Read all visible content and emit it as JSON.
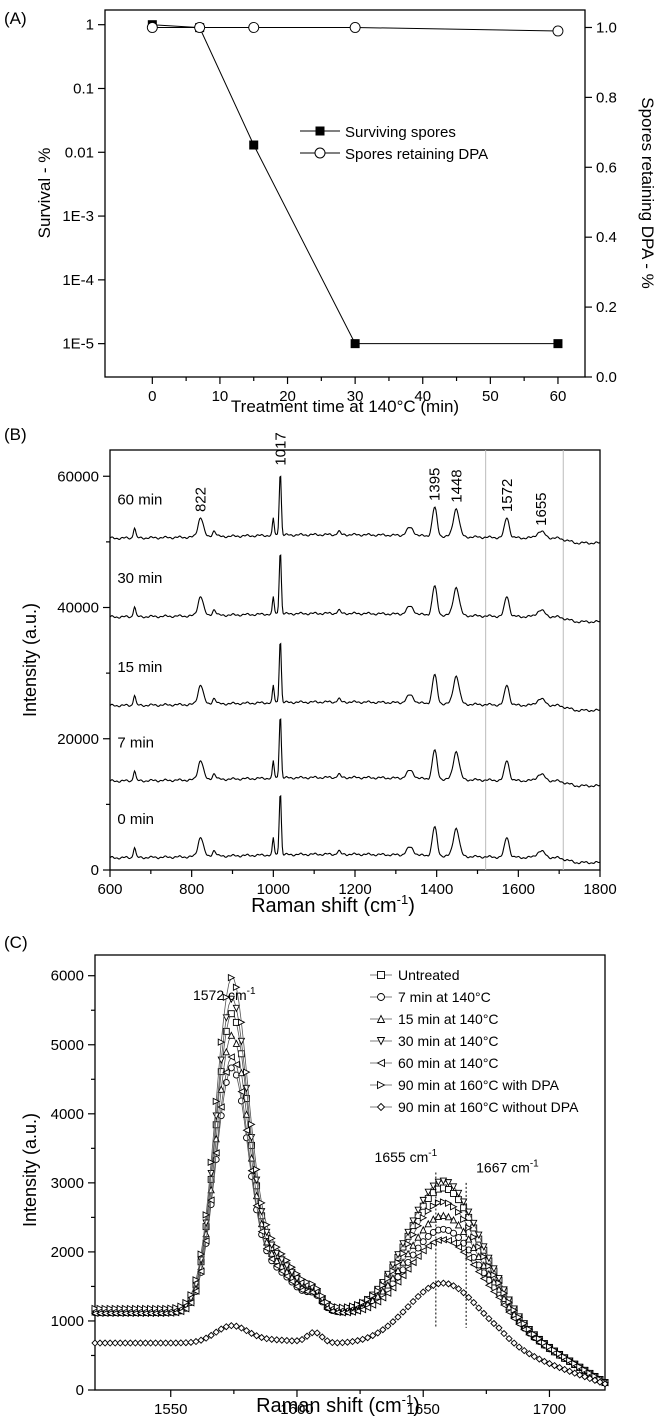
{
  "chart_data": [
    {
      "panel_label": "(A)",
      "type": "line",
      "xlabel": "Treatment time at 140°C (min)",
      "ylabel": "Survival - %",
      "ylabel_right": "Spores retaining DPA - %",
      "xlim": [
        -7,
        64
      ],
      "ylim": [
        3e-06,
        1.7
      ],
      "y_scale": "log",
      "ylim_right": [
        0,
        1.05
      ],
      "x_ticks": [
        0,
        10,
        20,
        30,
        40,
        50,
        60
      ],
      "x_tick_labels": [
        "0",
        "10",
        "20",
        "30",
        "40",
        "50",
        "60"
      ],
      "y_ticks": [
        1,
        0.1,
        0.01,
        0.001,
        0.0001,
        1e-05
      ],
      "y_tick_labels": [
        "1",
        "0.1",
        "0.01",
        "1E-3",
        "1E-4",
        "1E-5"
      ],
      "y_right_ticks": [
        0,
        0.2,
        0.4,
        0.6,
        0.8,
        1.0
      ],
      "y_right_tick_labels": [
        "0.0",
        "0.2",
        "0.4",
        "0.6",
        "0.8",
        "1.0"
      ],
      "legend_position": "center-right",
      "series": [
        {
          "name": "Surviving spores",
          "marker": "square-filled",
          "axis": "left",
          "x": [
            0,
            7,
            15,
            30,
            60
          ],
          "y": [
            1,
            0.9,
            0.013,
            1e-05,
            1e-05
          ]
        },
        {
          "name": "Spores retaining DPA",
          "marker": "circle-open",
          "axis": "right",
          "x": [
            0,
            7,
            15,
            30,
            60
          ],
          "y": [
            1.0,
            1.0,
            1.0,
            1.0,
            0.99
          ]
        }
      ]
    },
    {
      "panel_label": "(B)",
      "type": "line",
      "xlabel": "Raman shift (cm",
      "xlabel_sup": "-1",
      "xlabel_tail": ")",
      "ylabel": "Intensity (a.u.)",
      "xlim": [
        600,
        1800
      ],
      "ylim": [
        0,
        64000
      ],
      "x_ticks": [
        600,
        800,
        1000,
        1200,
        1400,
        1600,
        1800
      ],
      "x_tick_labels": [
        "600",
        "800",
        "1000",
        "1200",
        "1400",
        "1600",
        "1800"
      ],
      "y_ticks": [
        0,
        20000,
        40000,
        60000
      ],
      "y_tick_labels": [
        "0",
        "20000",
        "40000",
        "60000"
      ],
      "vlines": [
        1520,
        1710
      ],
      "peaks": [
        {
          "label": "822",
          "x": 822
        },
        {
          "label": "1017",
          "x": 1017
        },
        {
          "label": "1395",
          "x": 1395
        },
        {
          "label": "1448",
          "x": 1448
        },
        {
          "label": "1572",
          "x": 1572
        },
        {
          "label": "1655",
          "x": 1655
        }
      ],
      "series": [
        {
          "name": "0 min",
          "offset": 1800
        },
        {
          "name": "7 min",
          "offset": 13500
        },
        {
          "name": "15 min",
          "offset": 25000
        },
        {
          "name": "30 min",
          "offset": 38500
        },
        {
          "name": "60 min",
          "offset": 50500
        }
      ]
    },
    {
      "panel_label": "(C)",
      "type": "line",
      "xlabel": "Raman shift (cm",
      "xlabel_sup": "-1",
      "xlabel_tail": ")",
      "ylabel": "Intensity (a.u.)",
      "xlim": [
        1520,
        1722
      ],
      "ylim": [
        0,
        6300
      ],
      "x_ticks": [
        1550,
        1600,
        1650,
        1700
      ],
      "x_tick_labels": [
        "1550",
        "1600",
        "1650",
        "1700"
      ],
      "y_ticks": [
        0,
        1000,
        2000,
        3000,
        4000,
        5000,
        6000
      ],
      "y_tick_labels": [
        "0",
        "1000",
        "2000",
        "3000",
        "4000",
        "5000",
        "6000"
      ],
      "legend_position": "top-right",
      "annotations": [
        {
          "text": "1572 cm",
          "sup": "-1",
          "x": 1572
        },
        {
          "text": "1655 cm",
          "sup": "-1",
          "x": 1655
        },
        {
          "text": "1667 cm",
          "sup": "-1",
          "x": 1667
        }
      ],
      "series": [
        {
          "name": "Untreated",
          "marker": "square-open",
          "peak1": 5250,
          "base1": 1150,
          "peak2": 2950
        },
        {
          "name": "7 min at 140°C",
          "marker": "circle-open",
          "peak1": 4500,
          "base1": 1120,
          "peak2": 2350
        },
        {
          "name": "15 min at 140°C",
          "marker": "triangle-up-open",
          "peak1": 4950,
          "base1": 1130,
          "peak2": 2550
        },
        {
          "name": "30 min at 140°C",
          "marker": "triangle-down-open",
          "peak1": 5450,
          "base1": 1140,
          "peak2": 3050
        },
        {
          "name": "60 min at 140°C",
          "marker": "triangle-left-open",
          "peak1": 4650,
          "base1": 1110,
          "peak2": 2200
        },
        {
          "name": "90 min at 160°C with DPA",
          "marker": "triangle-right-open",
          "peak1": 5750,
          "base1": 1180,
          "peak2": 2750
        },
        {
          "name": "90 min at 160°C without DPA",
          "marker": "diamond-open",
          "peak1": 920,
          "base1": 680,
          "peak2": 1550
        }
      ]
    }
  ]
}
